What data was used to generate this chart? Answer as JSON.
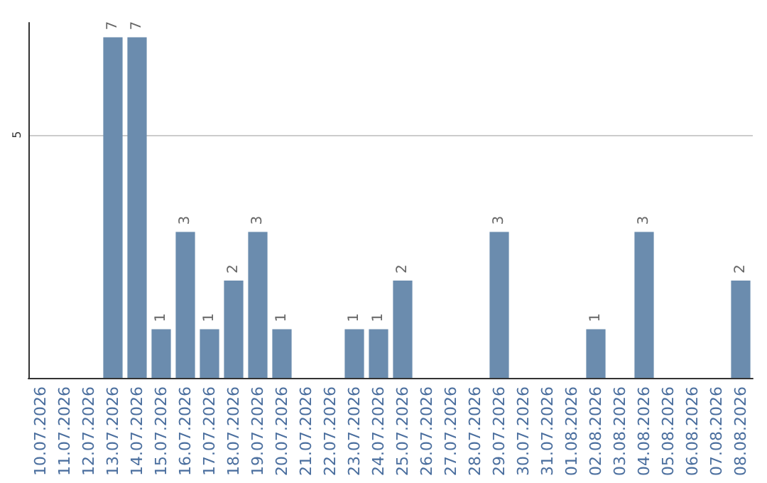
{
  "chart_data": {
    "type": "bar",
    "categories": [
      "10.07.2026",
      "11.07.2026",
      "12.07.2026",
      "13.07.2026",
      "14.07.2026",
      "15.07.2026",
      "16.07.2026",
      "17.07.2026",
      "18.07.2026",
      "19.07.2026",
      "20.07.2026",
      "21.07.2026",
      "22.07.2026",
      "23.07.2026",
      "24.07.2026",
      "25.07.2026",
      "26.07.2026",
      "27.07.2026",
      "28.07.2026",
      "29.07.2026",
      "30.07.2026",
      "31.07.2026",
      "01.08.2026",
      "02.08.2026",
      "03.08.2026",
      "04.08.2026",
      "05.08.2026",
      "06.08.2026",
      "07.08.2026",
      "08.08.2026"
    ],
    "values": [
      0,
      0,
      0,
      7,
      7,
      1,
      3,
      1,
      2,
      3,
      1,
      0,
      0,
      1,
      1,
      2,
      0,
      0,
      0,
      3,
      0,
      0,
      0,
      1,
      0,
      3,
      0,
      0,
      0,
      2
    ],
    "value_labels": [
      null,
      null,
      null,
      "7",
      "7",
      "1",
      "3",
      "1",
      "2",
      "3",
      "1",
      null,
      null,
      "1",
      "1",
      "2",
      null,
      null,
      null,
      "3",
      null,
      null,
      null,
      "1",
      null,
      "3",
      null,
      null,
      null,
      "2"
    ],
    "color": "#6b8cae",
    "ylim": [
      0,
      7.3
    ],
    "yticks": [
      {
        "value": 0,
        "label": null
      },
      5
    ],
    "grid": "y"
  }
}
